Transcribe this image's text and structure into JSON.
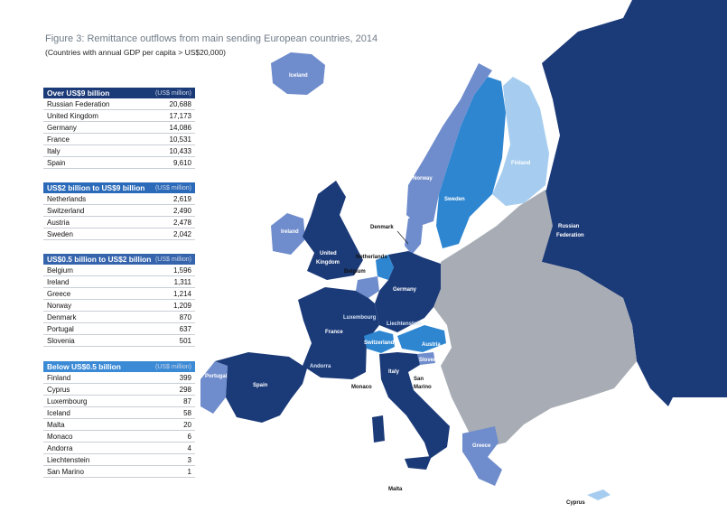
{
  "figure": {
    "title": "Figure 3: Remittance outflows from main sending European countries, 2014",
    "subtitle": "(Countries with annual GDP per capita > US$20,000)"
  },
  "colors": {
    "tier1": "#1b3a78",
    "tier2": "#2e86d1",
    "tier3": "#6f8ccc",
    "tier4": "#a6cdef",
    "other": "#a8adb5",
    "header1": "#1b3a78",
    "header2": "#2b6ab9",
    "header3": "#3564ad",
    "header4": "#3b8ad6"
  },
  "tables": [
    {
      "heading": "Over US$9 billion",
      "unit": "(US$ million)",
      "rows": [
        {
          "country": "Russian Federation",
          "value": "20,688"
        },
        {
          "country": "United Kingdom",
          "value": "17,173"
        },
        {
          "country": "Germany",
          "value": "14,086"
        },
        {
          "country": "France",
          "value": "10,531"
        },
        {
          "country": "Italy",
          "value": "10,433"
        },
        {
          "country": "Spain",
          "value": "9,610"
        }
      ]
    },
    {
      "heading": "US$2 billion to US$9 billion",
      "unit": "(US$ million)",
      "rows": [
        {
          "country": "Netherlands",
          "value": "2,619"
        },
        {
          "country": "Switzerland",
          "value": "2,490"
        },
        {
          "country": "Austria",
          "value": "2,478"
        },
        {
          "country": "Sweden",
          "value": "2,042"
        }
      ]
    },
    {
      "heading": "US$0.5 billion to US$2 billion",
      "unit": "(US$ million)",
      "rows": [
        {
          "country": "Belgium",
          "value": "1,596"
        },
        {
          "country": "Ireland",
          "value": "1,311"
        },
        {
          "country": "Greece",
          "value": "1,214"
        },
        {
          "country": "Norway",
          "value": "1,209"
        },
        {
          "country": "Denmark",
          "value": "870"
        },
        {
          "country": "Portugal",
          "value": "637"
        },
        {
          "country": "Slovenia",
          "value": "501"
        }
      ]
    },
    {
      "heading": "Below US$0.5 billion",
      "unit": "(US$ million)",
      "rows": [
        {
          "country": "Finland",
          "value": "399"
        },
        {
          "country": "Cyprus",
          "value": "298"
        },
        {
          "country": "Luxembourg",
          "value": "87"
        },
        {
          "country": "Iceland",
          "value": "58"
        },
        {
          "country": "Malta",
          "value": "20"
        },
        {
          "country": "Monaco",
          "value": "6"
        },
        {
          "country": "Andorra",
          "value": "4"
        },
        {
          "country": "Liechtenstein",
          "value": "3"
        },
        {
          "country": "San Marino",
          "value": "1"
        }
      ]
    }
  ],
  "map_labels": {
    "iceland": "Iceland",
    "norway": "Norway",
    "sweden": "Sweden",
    "finland": "Finland",
    "russia": "Russian Federation",
    "denmark": "Denmark",
    "ireland": "Ireland",
    "uk": "United Kingdom",
    "netherlands": "Netherlands",
    "belgium": "Belgium",
    "luxembourg": "Luxembourg",
    "germany": "Germany",
    "liechtenstein": "Liechtenstein",
    "france": "France",
    "switzerland": "Switzerland",
    "austria": "Austria",
    "slovenia": "Slovenia",
    "andorra": "Andorra",
    "monaco": "Monaco",
    "portugal": "Portugal",
    "spain": "Spain",
    "italy": "Italy",
    "san_marino": "San Marino",
    "greece": "Greece",
    "malta": "Malta",
    "cyprus": "Cyprus"
  }
}
